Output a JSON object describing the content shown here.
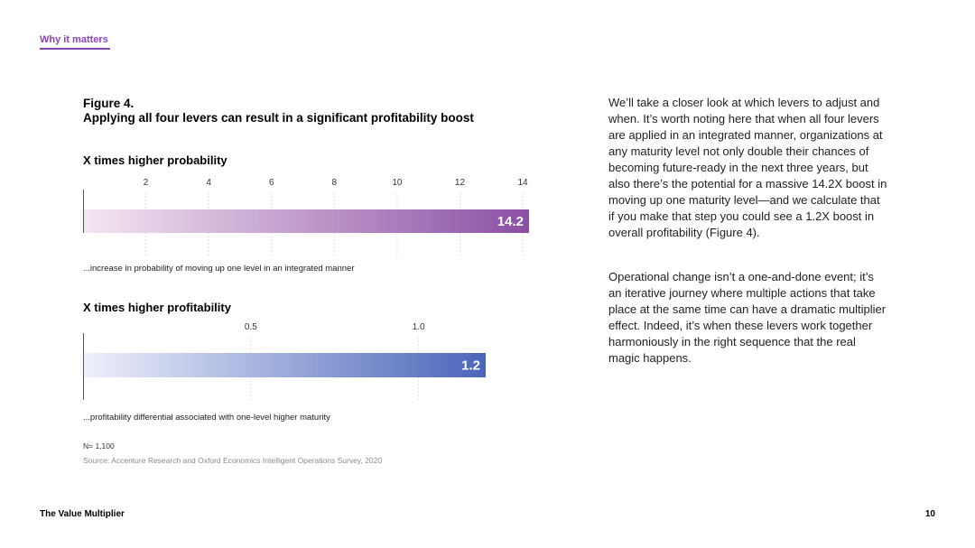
{
  "header": {
    "section_tag": "Why it matters"
  },
  "figure": {
    "number": "Figure 4.",
    "title": "Applying all four levers can result in a significant profitability boost"
  },
  "chart_data": [
    {
      "type": "bar",
      "title": "X times higher probability",
      "categories": [
        "…increase in probability of moving up one level in an integrated manner"
      ],
      "values": [
        14.2
      ],
      "value_labels": [
        "14.2"
      ],
      "caption": "...increase in probability of moving up one level in an integrated manner",
      "xticks": [
        "2",
        "4",
        "6",
        "8",
        "10",
        "12",
        "14"
      ],
      "xtick_values": [
        2,
        4,
        6,
        8,
        10,
        12,
        14
      ],
      "xlim": [
        0,
        14.2
      ],
      "grid": true,
      "colors": {
        "from": "#f4e6f1",
        "to": "#8b4fa5"
      }
    },
    {
      "type": "bar",
      "title": "X times higher profitability",
      "categories": [
        "…profitability differential associated with one-level higher maturity"
      ],
      "values": [
        1.2
      ],
      "value_labels": [
        "1.2"
      ],
      "caption": "...profitability differential associated with one-level higher maturity",
      "xticks": [
        "0.5",
        "1.0"
      ],
      "xtick_values": [
        0.5,
        1.0
      ],
      "xlim": [
        0,
        1.2
      ],
      "grid": true,
      "colors": {
        "from": "#eef0fb",
        "to": "#4a65b9"
      }
    }
  ],
  "notes": {
    "n": "N= 1,100",
    "source": "Source: Accenture Research and Oxford Economics Intelligent Operations Survey, 2020"
  },
  "body": {
    "paragraphs": [
      "We’ll take a closer look at which levers to adjust and when. It’s worth noting here that when all four levers are applied in an integrated manner, organizations at any maturity level not only double their chances of becoming future-ready in the next three years, but also there’s the potential for a massive 14.2X boost in moving up one maturity level—and we calculate that if you make that step you could see a 1.2X boost in overall profitability (Figure 4).",
      "Operational change isn’t a one-and-done event; it’s an iterative journey where multiple actions that take place at the same time can have a dramatic multiplier effect. Indeed, it’s when these levers work together harmoniously in the right sequence that the real magic happens."
    ]
  },
  "footer": {
    "title": "The Value Multiplier",
    "page": "10"
  }
}
